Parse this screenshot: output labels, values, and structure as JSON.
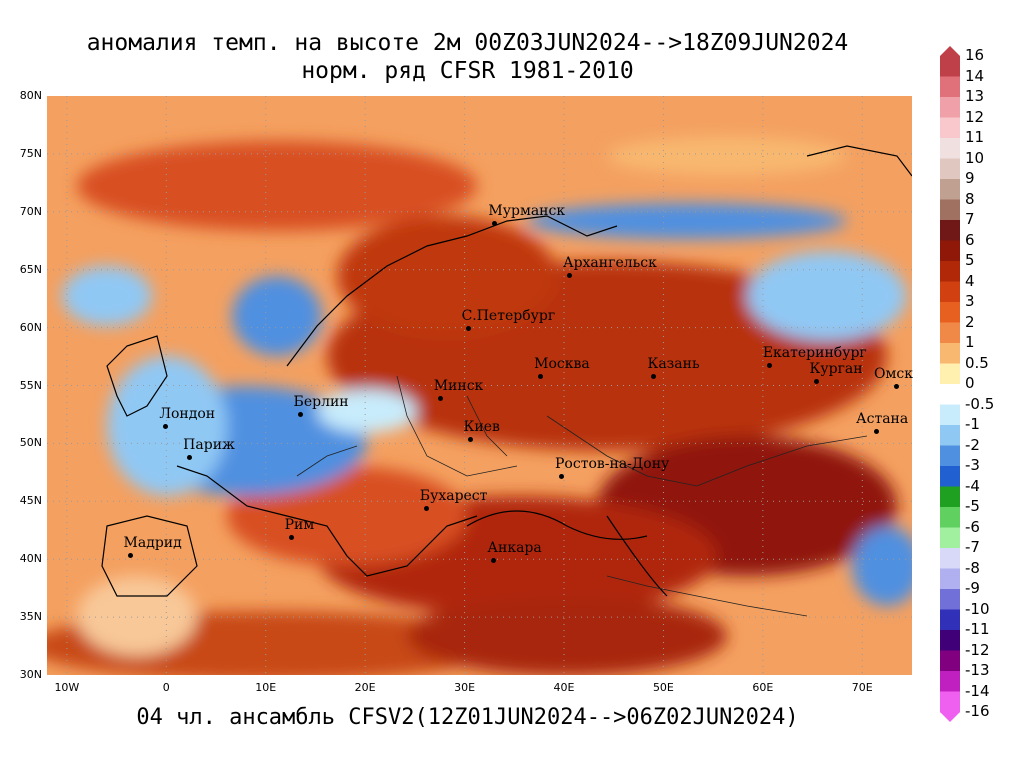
{
  "title": {
    "line1": "аномалия темп. на высоте 2м 00Z03JUN2024-->18Z09JUN2024",
    "line2": "норм. ряд CFSR 1981-2010"
  },
  "footer": "04 чл. ансамбль CFSV2(12Z01JUN2024-->06Z02JUN2024)",
  "map": {
    "lat_labels": [
      "80N",
      "75N",
      "70N",
      "65N",
      "60N",
      "55N",
      "50N",
      "45N",
      "40N",
      "35N",
      "30N"
    ],
    "lon_labels": [
      "10W",
      "0",
      "10E",
      "20E",
      "30E",
      "40E",
      "50E",
      "60E",
      "70E"
    ],
    "cities": [
      {
        "name": "Мурманск",
        "lon": 33,
        "lat": 69
      },
      {
        "name": "Архангельск",
        "lon": 40.5,
        "lat": 64.5
      },
      {
        "name": "С.Петербург",
        "lon": 30.3,
        "lat": 60
      },
      {
        "name": "Москва",
        "lon": 37.6,
        "lat": 55.8
      },
      {
        "name": "Казань",
        "lon": 49,
        "lat": 55.8
      },
      {
        "name": "Екатеринбург",
        "lon": 60.6,
        "lat": 56.8
      },
      {
        "name": "Курган",
        "lon": 65.3,
        "lat": 55.4
      },
      {
        "name": "Омск",
        "lon": 73.4,
        "lat": 55
      },
      {
        "name": "Астана",
        "lon": 71.4,
        "lat": 51.1
      },
      {
        "name": "Минск",
        "lon": 27.5,
        "lat": 53.9
      },
      {
        "name": "Берлин",
        "lon": 13.4,
        "lat": 52.5
      },
      {
        "name": "Лондон",
        "lon": -0.1,
        "lat": 51.5
      },
      {
        "name": "Париж",
        "lon": 2.3,
        "lat": 48.8
      },
      {
        "name": "Киев",
        "lon": 30.5,
        "lat": 50.4
      },
      {
        "name": "Ростов-на-Дону",
        "lon": 39.7,
        "lat": 47.2
      },
      {
        "name": "Бухарест",
        "lon": 26.1,
        "lat": 44.4
      },
      {
        "name": "Рим",
        "lon": 12.5,
        "lat": 41.9
      },
      {
        "name": "Мадрид",
        "lon": -3.7,
        "lat": 40.4
      },
      {
        "name": "Анкара",
        "lon": 32.9,
        "lat": 39.9
      }
    ]
  },
  "colorbar": {
    "labels": [
      "16",
      "14",
      "13",
      "12",
      "11",
      "10",
      "9",
      "8",
      "7",
      "6",
      "5",
      "4",
      "3",
      "2",
      "1",
      "0.5",
      "0",
      "-0.5",
      "-1",
      "-2",
      "-3",
      "-4",
      "-5",
      "-6",
      "-7",
      "-8",
      "-9",
      "-10",
      "-11",
      "-12",
      "-13",
      "-14",
      "-16"
    ],
    "colors": [
      "#c0404a",
      "#e0707a",
      "#f0a0a8",
      "#f8c8cc",
      "#f0e0e0",
      "#e0c8c0",
      "#c0a090",
      "#a07060",
      "#701818",
      "#901808",
      "#b02808",
      "#d04010",
      "#e86020",
      "#f08848",
      "#f8b870",
      "#fff0b0",
      "#ffffff",
      "#c8ecfc",
      "#90c8f4",
      "#5090e0",
      "#2060d0",
      "#20a020",
      "#60d060",
      "#a0f0a0",
      "#d8d8f8",
      "#b0b0f0",
      "#7070d8",
      "#3030b8",
      "#400078",
      "#800080",
      "#c020c0",
      "#f060f0"
    ]
  }
}
